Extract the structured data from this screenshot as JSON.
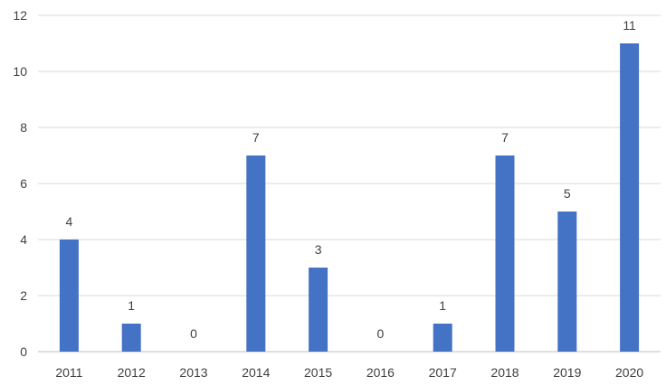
{
  "chart_data": {
    "type": "bar",
    "categories": [
      "2011",
      "2012",
      "2013",
      "2014",
      "2015",
      "2016",
      "2017",
      "2018",
      "2019",
      "2020"
    ],
    "values": [
      4,
      1,
      0,
      7,
      3,
      0,
      1,
      7,
      5,
      11
    ],
    "data_labels": [
      "4",
      "1",
      "0",
      "7",
      "3",
      "0",
      "1",
      "7",
      "5",
      "11"
    ],
    "title": "",
    "xlabel": "",
    "ylabel": "",
    "ylim": [
      0,
      12
    ],
    "yticks": [
      "0",
      "2",
      "4",
      "6",
      "8",
      "10",
      "12"
    ],
    "grid": true,
    "legend": "none",
    "colors": {
      "bar": "#4472c4"
    }
  }
}
